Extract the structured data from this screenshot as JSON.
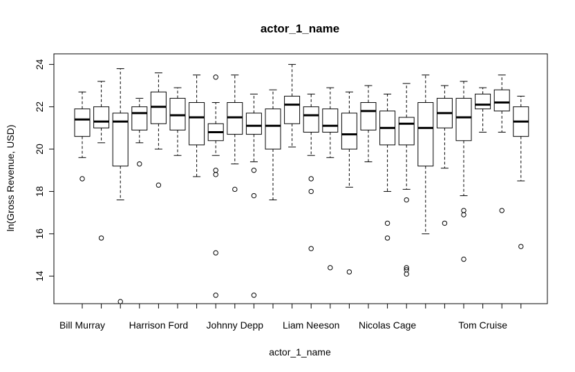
{
  "chart_data": {
    "type": "box",
    "title": "actor_1_name",
    "xlabel": "actor_1_name",
    "ylabel": "ln(Gross Revenue, USD)",
    "ylim": [
      12.7,
      24.5
    ],
    "yticks": [
      14,
      16,
      18,
      20,
      22,
      24
    ],
    "box_count": 24,
    "x_tick_labels": [
      {
        "box": 1,
        "label": "Bill Murray"
      },
      {
        "box": 5,
        "label": "Harrison Ford"
      },
      {
        "box": 9,
        "label": "Johnny Depp"
      },
      {
        "box": 13,
        "label": "Liam Neeson"
      },
      {
        "box": 17,
        "label": "Nicolas Cage"
      },
      {
        "box": 22,
        "label": "Tom Cruise"
      }
    ],
    "grid": false,
    "boxes": [
      {
        "whisker_low": 19.6,
        "q1": 20.6,
        "median": 21.4,
        "q3": 21.9,
        "whisker_high": 22.7,
        "outliers": [
          18.6
        ]
      },
      {
        "whisker_low": 20.3,
        "q1": 21.0,
        "median": 21.3,
        "q3": 22.0,
        "whisker_high": 23.2,
        "outliers": [
          15.8
        ]
      },
      {
        "whisker_low": 17.6,
        "q1": 19.2,
        "median": 21.3,
        "q3": 21.7,
        "whisker_high": 23.8,
        "outliers": [
          12.8
        ]
      },
      {
        "whisker_low": 20.3,
        "q1": 20.9,
        "median": 21.7,
        "q3": 22.0,
        "whisker_high": 22.4,
        "outliers": [
          19.3
        ]
      },
      {
        "whisker_low": 20.0,
        "q1": 21.2,
        "median": 22.0,
        "q3": 22.7,
        "whisker_high": 23.6,
        "outliers": [
          18.3
        ]
      },
      {
        "whisker_low": 19.7,
        "q1": 20.9,
        "median": 21.6,
        "q3": 22.4,
        "whisker_high": 22.9,
        "outliers": []
      },
      {
        "whisker_low": 18.7,
        "q1": 20.2,
        "median": 21.5,
        "q3": 22.2,
        "whisker_high": 23.5,
        "outliers": []
      },
      {
        "whisker_low": 19.7,
        "q1": 20.4,
        "median": 20.8,
        "q3": 21.2,
        "whisker_high": 22.2,
        "outliers": [
          23.4,
          19.0,
          18.8,
          15.1,
          13.1
        ]
      },
      {
        "whisker_low": 19.3,
        "q1": 20.7,
        "median": 21.5,
        "q3": 22.2,
        "whisker_high": 23.5,
        "outliers": [
          18.1
        ]
      },
      {
        "whisker_low": 19.4,
        "q1": 20.7,
        "median": 21.1,
        "q3": 21.7,
        "whisker_high": 22.6,
        "outliers": [
          19.0,
          17.8,
          13.1
        ]
      },
      {
        "whisker_low": 17.6,
        "q1": 20.0,
        "median": 21.1,
        "q3": 21.9,
        "whisker_high": 22.8,
        "outliers": []
      },
      {
        "whisker_low": 20.1,
        "q1": 21.2,
        "median": 22.1,
        "q3": 22.5,
        "whisker_high": 24.0,
        "outliers": []
      },
      {
        "whisker_low": 19.7,
        "q1": 20.8,
        "median": 21.6,
        "q3": 22.0,
        "whisker_high": 22.6,
        "outliers": [
          18.6,
          18.0,
          15.3
        ]
      },
      {
        "whisker_low": 19.6,
        "q1": 20.8,
        "median": 21.1,
        "q3": 21.9,
        "whisker_high": 22.9,
        "outliers": [
          14.4
        ]
      },
      {
        "whisker_low": 18.2,
        "q1": 20.0,
        "median": 20.7,
        "q3": 21.7,
        "whisker_high": 22.7,
        "outliers": [
          14.2
        ]
      },
      {
        "whisker_low": 19.4,
        "q1": 20.9,
        "median": 21.8,
        "q3": 22.2,
        "whisker_high": 23.0,
        "outliers": []
      },
      {
        "whisker_low": 18.0,
        "q1": 20.2,
        "median": 21.0,
        "q3": 21.8,
        "whisker_high": 22.6,
        "outliers": [
          16.5,
          15.8
        ]
      },
      {
        "whisker_low": 18.1,
        "q1": 20.2,
        "median": 21.2,
        "q3": 21.5,
        "whisker_high": 23.1,
        "outliers": [
          17.6,
          14.4,
          14.3,
          14.1
        ]
      },
      {
        "whisker_low": 16.0,
        "q1": 19.2,
        "median": 21.0,
        "q3": 22.2,
        "whisker_high": 23.5,
        "outliers": []
      },
      {
        "whisker_low": 19.1,
        "q1": 21.0,
        "median": 21.7,
        "q3": 22.4,
        "whisker_high": 23.0,
        "outliers": [
          16.5
        ]
      },
      {
        "whisker_low": 17.8,
        "q1": 20.4,
        "median": 21.5,
        "q3": 22.4,
        "whisker_high": 23.2,
        "outliers": [
          17.1,
          16.9,
          14.8
        ]
      },
      {
        "whisker_low": 20.8,
        "q1": 21.9,
        "median": 22.1,
        "q3": 22.6,
        "whisker_high": 22.9,
        "outliers": []
      },
      {
        "whisker_low": 20.8,
        "q1": 21.8,
        "median": 22.2,
        "q3": 22.8,
        "whisker_high": 23.5,
        "outliers": [
          17.1
        ]
      },
      {
        "whisker_low": 18.5,
        "q1": 20.6,
        "median": 21.3,
        "q3": 22.0,
        "whisker_high": 22.5,
        "outliers": [
          15.4
        ]
      }
    ]
  }
}
